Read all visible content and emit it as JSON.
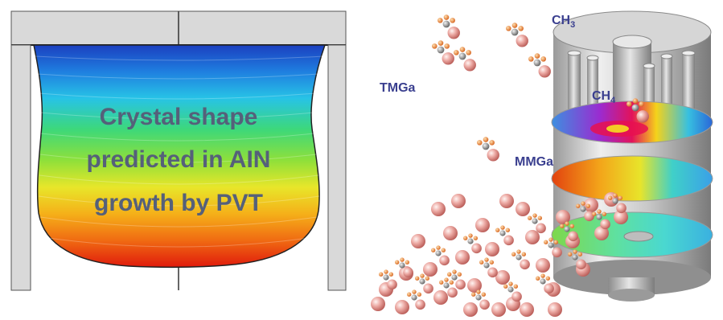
{
  "left_panel": {
    "caption_lines": [
      "Crystal shape",
      "predicted in AIN",
      "growth by PVT"
    ],
    "gradient_colors": [
      "#1b3fbf",
      "#1f7fe0",
      "#27c3e6",
      "#3dd87a",
      "#8fe03a",
      "#e8e62a",
      "#f5b019",
      "#f06a12",
      "#e01a0c"
    ],
    "caption_color": "#55607a"
  },
  "right_panel": {
    "labels": {
      "tmga": "TMGa",
      "ch3": "CH3",
      "ch4": "CH4",
      "mmga": "MMGa"
    },
    "label_color": "#3a3f8f",
    "molecule_colors": {
      "large_atom": "#e9a29c",
      "carbon": "#8a8a8a",
      "hydrogen": "#f08a28"
    }
  }
}
